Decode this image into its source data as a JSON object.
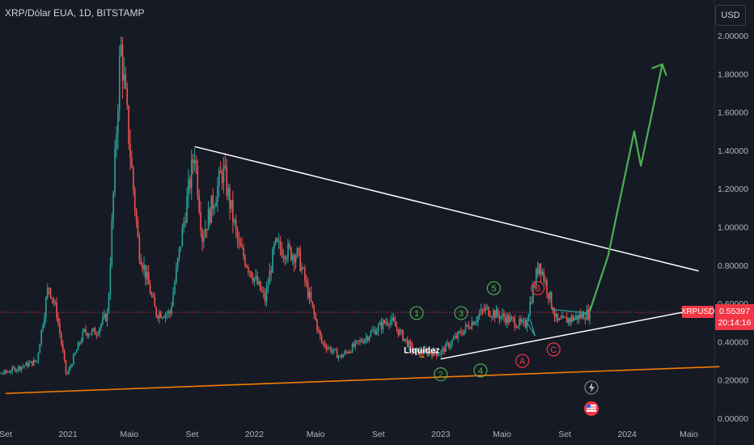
{
  "header": {
    "title": "XRP/Dólar EUA, 1D, BITSTAMP",
    "currency_button": "USD"
  },
  "colors": {
    "background": "#161a25",
    "up": "#26a69a",
    "down": "#ef5350",
    "price_badge": "#f23645",
    "trendline": "#ffffff",
    "support": "#f57c00",
    "projection": "#4caf50"
  },
  "price_badge": {
    "symbol": "XRPUSD",
    "price": "0.55397",
    "countdown": "20:14:16"
  },
  "annotations": {
    "liquidity_label": "Liquidez",
    "wave_labels": [
      "1",
      "2",
      "3",
      "4",
      "5",
      "A",
      "B",
      "C"
    ]
  },
  "chart_data": {
    "type": "candlestick",
    "title": "XRP/Dólar EUA, 1D, BITSTAMP",
    "ylabel": "USD",
    "ylim": [
      0.0,
      2.1
    ],
    "y_ticks": [
      "2.00000",
      "1.80000",
      "1.60000",
      "1.40000",
      "1.20000",
      "1.00000",
      "0.80000",
      "0.60000",
      "0.40000",
      "0.20000",
      "0.00000"
    ],
    "x_ticks": [
      "Set",
      "2021",
      "Maio",
      "Set",
      "2022",
      "Maio",
      "Set",
      "2023",
      "Maio",
      "Set",
      "2024",
      "Maio"
    ],
    "x_range": [
      "2020-09",
      "2024-06"
    ],
    "last_price": 0.55397,
    "price_path": [
      [
        "2020-07-01",
        0.2
      ],
      [
        "2020-09-01",
        0.24
      ],
      [
        "2020-11-01",
        0.3
      ],
      [
        "2020-11-24",
        0.7
      ],
      [
        "2020-12-10",
        0.55
      ],
      [
        "2020-12-29",
        0.22
      ],
      [
        "2021-02-01",
        0.45
      ],
      [
        "2021-02-25",
        0.45
      ],
      [
        "2021-03-20",
        0.55
      ],
      [
        "2021-04-14",
        1.96
      ],
      [
        "2021-05-19",
        0.9
      ],
      [
        "2021-06-22",
        0.55
      ],
      [
        "2021-07-20",
        0.55
      ],
      [
        "2021-09-06",
        1.4
      ],
      [
        "2021-09-21",
        0.95
      ],
      [
        "2021-11-01",
        1.3
      ],
      [
        "2021-12-01",
        0.9
      ],
      [
        "2022-01-22",
        0.62
      ],
      [
        "2022-02-10",
        0.9
      ],
      [
        "2022-03-28",
        0.85
      ],
      [
        "2022-05-12",
        0.4
      ],
      [
        "2022-06-18",
        0.32
      ],
      [
        "2022-09-23",
        0.52
      ],
      [
        "2022-11-09",
        0.35
      ],
      [
        "2022-12-30",
        0.34
      ],
      [
        "2023-03-29",
        0.57
      ],
      [
        "2023-06-15",
        0.48
      ],
      [
        "2023-07-13",
        0.82
      ],
      [
        "2023-08-17",
        0.5
      ],
      [
        "2023-10-20",
        0.55
      ]
    ],
    "trendlines": [
      {
        "name": "descending resistance",
        "points": [
          [
            "2021-09-06",
            1.42
          ],
          [
            "2024-05-20",
            0.77
          ]
        ]
      },
      {
        "name": "ascending support",
        "points": [
          [
            "2023-01-01",
            0.31
          ],
          [
            "2024-05-20",
            0.57
          ]
        ]
      },
      {
        "name": "long-term support",
        "points": [
          [
            "2020-09-01",
            0.13
          ],
          [
            "2024-06-30",
            0.27
          ]
        ]
      }
    ],
    "projection": [
      [
        "2023-10-20",
        0.56
      ],
      [
        "2023-11-25",
        0.85
      ],
      [
        "2024-01-15",
        1.5
      ],
      [
        "2024-01-28",
        1.32
      ],
      [
        "2024-03-10",
        1.85
      ]
    ],
    "wave_points": [
      [
        "1",
        "2022-11-15",
        0.55,
        "green"
      ],
      [
        "2",
        "2023-01-01",
        0.23,
        "green"
      ],
      [
        "3",
        "2023-02-10",
        0.55,
        "green"
      ],
      [
        "4",
        "2023-03-20",
        0.25,
        "green"
      ],
      [
        "5",
        "2023-04-15",
        0.68,
        "green"
      ],
      [
        "A",
        "2023-06-10",
        0.3,
        "red"
      ],
      [
        "B",
        "2023-07-10",
        0.68,
        "red"
      ],
      [
        "C",
        "2023-08-10",
        0.36,
        "red"
      ]
    ]
  }
}
